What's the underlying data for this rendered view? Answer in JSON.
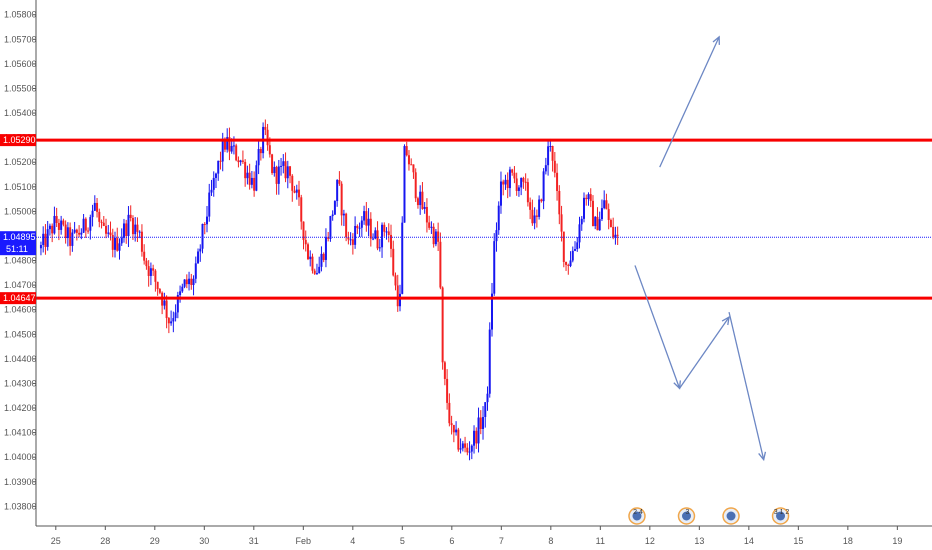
{
  "chart_data": {
    "type": "candlestick",
    "title": "",
    "ylim": [
      1.0372,
      1.0586
    ],
    "y_ticks": [
      "1.05800",
      "1.05700",
      "1.05600",
      "1.05500",
      "1.05400",
      "1.05300",
      "1.05200",
      "1.05100",
      "1.05000",
      "1.04800",
      "1.04700",
      "1.04600",
      "1.04500",
      "1.04400",
      "1.04300",
      "1.04200",
      "1.04100",
      "1.04000",
      "1.03900",
      "1.03800"
    ],
    "x_ticks": [
      {
        "label": "25",
        "t": 0.3
      },
      {
        "label": "28",
        "t": 1.3
      },
      {
        "label": "29",
        "t": 2.3
      },
      {
        "label": "30",
        "t": 3.3
      },
      {
        "label": "31",
        "t": 4.3
      },
      {
        "label": "Feb",
        "t": 5.3
      },
      {
        "label": "4",
        "t": 6.3
      },
      {
        "label": "5",
        "t": 7.3
      },
      {
        "label": "6",
        "t": 8.3
      },
      {
        "label": "7",
        "t": 9.3
      },
      {
        "label": "8",
        "t": 10.3
      },
      {
        "label": "11",
        "t": 11.3
      },
      {
        "label": "12",
        "t": 12.3
      },
      {
        "label": "13",
        "t": 13.3
      },
      {
        "label": "14",
        "t": 14.3
      },
      {
        "label": "15",
        "t": 15.3
      },
      {
        "label": "18",
        "t": 16.3
      },
      {
        "label": "19",
        "t": 17.3
      }
    ],
    "x_range": [
      -0.1,
      18.0
    ],
    "resistance": {
      "price": 1.0529,
      "label": "1.05290"
    },
    "support": {
      "price": 1.04647,
      "label": "1.04647"
    },
    "current_price": {
      "price": 1.04895,
      "label": "1.04895",
      "countdown": "51:11"
    },
    "price_path": [
      [
        0.0,
        1.0485
      ],
      [
        0.3,
        1.0496
      ],
      [
        0.6,
        1.0488
      ],
      [
        0.9,
        1.0494
      ],
      [
        1.1,
        1.0503
      ],
      [
        1.2,
        1.0492
      ],
      [
        1.5,
        1.0486
      ],
      [
        1.8,
        1.0497
      ],
      [
        2.0,
        1.049
      ],
      [
        2.1,
        1.048
      ],
      [
        2.4,
        1.0468
      ],
      [
        2.6,
        1.0455
      ],
      [
        2.9,
        1.047
      ],
      [
        3.1,
        1.0472
      ],
      [
        3.3,
        1.0495
      ],
      [
        3.5,
        1.0512
      ],
      [
        3.7,
        1.0528
      ],
      [
        4.0,
        1.0522
      ],
      [
        4.3,
        1.0511
      ],
      [
        4.5,
        1.0532
      ],
      [
        4.7,
        1.0515
      ],
      [
        5.0,
        1.0517
      ],
      [
        5.2,
        1.0503
      ],
      [
        5.4,
        1.0482
      ],
      [
        5.6,
        1.0476
      ],
      [
        5.8,
        1.0491
      ],
      [
        6.0,
        1.0511
      ],
      [
        6.2,
        1.0487
      ],
      [
        6.5,
        1.0497
      ],
      [
        6.8,
        1.0488
      ],
      [
        7.0,
        1.0495
      ],
      [
        7.15,
        1.047
      ],
      [
        7.25,
        1.0462
      ],
      [
        7.35,
        1.0527
      ],
      [
        7.6,
        1.0507
      ],
      [
        7.9,
        1.0492
      ],
      [
        8.05,
        1.0486
      ],
      [
        8.1,
        1.0438
      ],
      [
        8.3,
        1.0409
      ],
      [
        8.6,
        1.0402
      ],
      [
        8.8,
        1.041
      ],
      [
        9.0,
        1.042
      ],
      [
        9.15,
        1.0485
      ],
      [
        9.3,
        1.051
      ],
      [
        9.5,
        1.0514
      ],
      [
        9.8,
        1.0508
      ],
      [
        10.0,
        1.0493
      ],
      [
        10.2,
        1.052
      ],
      [
        10.3,
        1.053
      ],
      [
        10.45,
        1.05
      ],
      [
        10.6,
        1.0478
      ],
      [
        10.8,
        1.0486
      ],
      [
        11.0,
        1.0508
      ],
      [
        11.2,
        1.0494
      ],
      [
        11.4,
        1.0504
      ],
      [
        11.5,
        1.0492
      ],
      [
        11.65,
        1.0489
      ]
    ],
    "projection": [
      {
        "from": [
          12.5,
          1.0518
        ],
        "to": [
          13.7,
          1.0571
        ]
      },
      {
        "from": [
          12.0,
          1.0478
        ],
        "to": [
          12.9,
          1.0428
        ]
      },
      {
        "from": [
          12.9,
          1.0428
        ],
        "to": [
          13.9,
          1.0457
        ]
      },
      {
        "from": [
          13.9,
          1.0459
        ],
        "to": [
          14.6,
          1.0399
        ]
      }
    ],
    "events": [
      {
        "t": 12.0,
        "numbers": "2 4"
      },
      {
        "t": 13.0,
        "numbers": "3"
      },
      {
        "t": 13.9,
        "numbers": ""
      },
      {
        "t": 14.9,
        "numbers": "3 1 2"
      }
    ]
  },
  "colors": {
    "bull": "#1616f0",
    "bear": "#f22222",
    "level_line": "#f80000",
    "current_line": "#1a1aff",
    "projection_arrow": "#6c87c4",
    "axis": "#555555",
    "event_fill": "#4a6fb3",
    "event_ring": "#f0a64a"
  }
}
